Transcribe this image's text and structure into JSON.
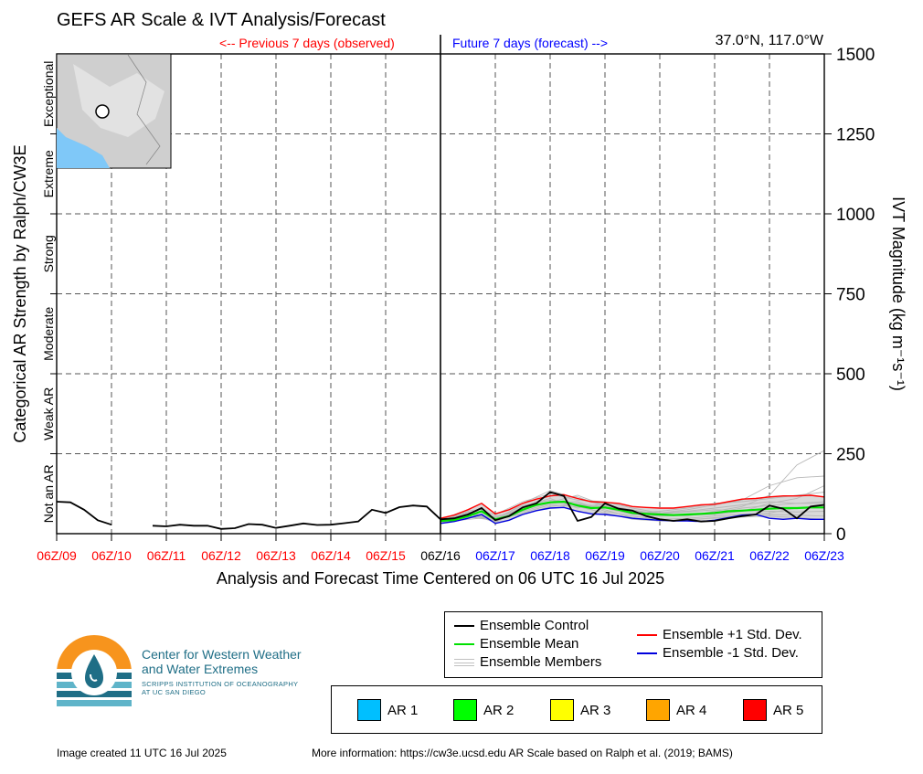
{
  "header": {
    "title": "GEFS AR Scale & IVT Analysis/Forecast",
    "location": "37.0°N, 117.0°W",
    "previous_label": "<-- Previous 7 days (observed)",
    "future_label": "Future 7 days (forecast) -->"
  },
  "colors": {
    "control": "#000000",
    "mean": "#00e000",
    "members": "#b8b8b8",
    "plus_std": "#ff0000",
    "minus_std": "#0000dd",
    "spread_fill": "#d0d0d0",
    "observed_tick": "#ff0000",
    "forecast_tick": "#0000ff",
    "ocean": "#7fc8f8",
    "grid": "#555555"
  },
  "chart_data": {
    "type": "line",
    "title": "GEFS AR Scale & IVT Analysis/Forecast",
    "xlabel": "Analysis and Forecast Time Centered on 06 UTC 16 Jul 2025",
    "ylabel_right": "IVT Magnitude (kg m⁻¹s⁻¹)",
    "ylabel_left": "Categorical AR Strength by Ralph/CW3E",
    "x_unit": "days from 06Z/09 Jul 2025",
    "xlim": [
      0,
      14
    ],
    "ylim": [
      0,
      1500
    ],
    "y_ticks": [
      0,
      250,
      500,
      750,
      1000,
      1250,
      1500
    ],
    "x_ticks": [
      "06Z/09",
      "06Z/10",
      "06Z/11",
      "06Z/12",
      "06Z/13",
      "06Z/14",
      "06Z/15",
      "06Z/16",
      "06Z/17",
      "06Z/18",
      "06Z/19",
      "06Z/20",
      "06Z/21",
      "06Z/22",
      "06Z/23"
    ],
    "analysis_index": 7,
    "categories": [
      "Not an AR",
      "Weak AR",
      "Moderate",
      "Strong",
      "Extreme",
      "Exceptional"
    ],
    "grid": true,
    "legend_placement": "below-right",
    "series": [
      {
        "name": "Ensemble Control",
        "x": [
          0,
          0.25,
          0.5,
          0.75,
          1.0,
          1.25,
          1.5,
          1.75,
          2.0,
          2.25,
          2.5,
          2.75,
          3.0,
          3.25,
          3.5,
          3.75,
          4.0,
          4.25,
          4.5,
          4.75,
          5.0,
          5.25,
          5.5,
          5.75,
          6.0,
          6.25,
          6.5,
          6.75,
          7.0,
          7.25,
          7.5,
          7.75,
          8.0,
          8.25,
          8.5,
          8.75,
          9.0,
          9.25,
          9.5,
          9.75,
          10.0,
          10.25,
          10.5,
          10.75,
          11.0,
          11.25,
          11.5,
          11.75,
          12.0,
          12.25,
          12.5,
          12.75,
          13.0,
          13.25,
          13.5,
          13.75,
          14.0
        ],
        "y": [
          100,
          98,
          75,
          42,
          28,
          null,
          null,
          25,
          23,
          28,
          25,
          25,
          15,
          17,
          30,
          28,
          18,
          25,
          32,
          27,
          28,
          33,
          38,
          75,
          65,
          83,
          88,
          85,
          45,
          48,
          60,
          80,
          42,
          55,
          82,
          95,
          130,
          118,
          40,
          52,
          95,
          78,
          72,
          55,
          45,
          40,
          45,
          38,
          40,
          48,
          55,
          60,
          88,
          78,
          48,
          85,
          90
        ]
      },
      {
        "name": "Ensemble Mean",
        "x": [
          7.0,
          7.25,
          7.5,
          7.75,
          8.0,
          8.25,
          8.5,
          8.75,
          9.0,
          9.25,
          9.5,
          9.75,
          10.0,
          10.25,
          10.5,
          10.75,
          11.0,
          11.25,
          11.5,
          11.75,
          12.0,
          12.25,
          12.5,
          12.75,
          13.0,
          13.25,
          13.5,
          13.75,
          14.0
        ],
        "y": [
          40,
          43,
          55,
          70,
          45,
          55,
          75,
          90,
          98,
          100,
          88,
          80,
          82,
          75,
          65,
          62,
          60,
          58,
          60,
          62,
          65,
          70,
          72,
          75,
          78,
          80,
          80,
          82,
          82
        ]
      },
      {
        "name": "Ensemble +1 Std. Dev.",
        "x": [
          7.0,
          7.25,
          7.5,
          7.75,
          8.0,
          8.25,
          8.5,
          8.75,
          9.0,
          9.25,
          9.5,
          9.75,
          10.0,
          10.25,
          10.5,
          10.75,
          11.0,
          11.25,
          11.5,
          11.75,
          12.0,
          12.25,
          12.5,
          12.75,
          13.0,
          13.25,
          13.5,
          13.75,
          14.0
        ],
        "y": [
          48,
          58,
          75,
          95,
          62,
          75,
          95,
          108,
          118,
          122,
          110,
          100,
          98,
          95,
          85,
          82,
          80,
          80,
          85,
          90,
          92,
          100,
          108,
          110,
          115,
          118,
          118,
          120,
          115
        ]
      },
      {
        "name": "Ensemble -1 Std. Dev.",
        "x": [
          7.0,
          7.25,
          7.5,
          7.75,
          8.0,
          8.25,
          8.5,
          8.75,
          9.0,
          9.25,
          9.5,
          9.75,
          10.0,
          10.25,
          10.5,
          10.75,
          11.0,
          11.25,
          11.5,
          11.75,
          12.0,
          12.25,
          12.5,
          12.75,
          13.0,
          13.25,
          13.5,
          13.75,
          14.0
        ],
        "y": [
          32,
          38,
          48,
          60,
          32,
          42,
          60,
          72,
          80,
          82,
          70,
          62,
          60,
          55,
          48,
          45,
          42,
          40,
          40,
          38,
          42,
          50,
          58,
          60,
          48,
          45,
          48,
          45,
          45
        ]
      },
      {
        "name": "Ensemble Members",
        "x": [
          7.0,
          7.5,
          8.0,
          8.5,
          9.0,
          9.5,
          10.0,
          10.5,
          11.0,
          11.5,
          12.0,
          12.5,
          13.0,
          13.5,
          14.0
        ],
        "members": [
          [
            40,
            62,
            50,
            80,
            120,
            115,
            85,
            70,
            65,
            75,
            90,
            105,
            150,
            175,
            180
          ],
          [
            42,
            55,
            45,
            75,
            100,
            90,
            80,
            60,
            55,
            58,
            60,
            70,
            95,
            110,
            150
          ],
          [
            38,
            70,
            40,
            95,
            135,
            110,
            90,
            75,
            60,
            55,
            70,
            85,
            120,
            215,
            260
          ],
          [
            45,
            50,
            55,
            70,
            95,
            100,
            70,
            55,
            45,
            48,
            55,
            60,
            65,
            80,
            90
          ],
          [
            40,
            68,
            38,
            85,
            110,
            80,
            95,
            65,
            70,
            80,
            95,
            100,
            110,
            120,
            130
          ],
          [
            35,
            45,
            52,
            60,
            85,
            95,
            75,
            50,
            40,
            42,
            50,
            55,
            60,
            58,
            55
          ],
          [
            44,
            75,
            60,
            100,
            125,
            105,
            100,
            80,
            65,
            70,
            80,
            90,
            100,
            95,
            100
          ],
          [
            36,
            52,
            42,
            65,
            90,
            85,
            65,
            45,
            40,
            45,
            48,
            52,
            55,
            50,
            45
          ],
          [
            42,
            60,
            48,
            88,
            105,
            92,
            85,
            68,
            55,
            60,
            65,
            80,
            88,
            95,
            95
          ],
          [
            39,
            65,
            35,
            78,
            98,
            120,
            88,
            72,
            62,
            68,
            75,
            72,
            70,
            68,
            70
          ]
        ]
      }
    ]
  },
  "legend": {
    "control": "Ensemble Control",
    "mean": "Ensemble Mean",
    "members": "Ensemble Members",
    "plus_std": "Ensemble +1 Std. Dev.",
    "minus_std": "Ensemble -1 Std. Dev."
  },
  "ar_scale": [
    {
      "label": "AR 1",
      "color": "#00bfff"
    },
    {
      "label": "AR 2",
      "color": "#00ff00"
    },
    {
      "label": "AR 3",
      "color": "#ffff00"
    },
    {
      "label": "AR 4",
      "color": "#ffa500"
    },
    {
      "label": "AR 5",
      "color": "#ff0000"
    }
  ],
  "logo": {
    "name_line1": "Center for Western Weather",
    "name_line2": "and Water Extremes",
    "sub_line1": "SCRIPPS INSTITUTION OF OCEANOGRAPHY",
    "sub_line2": "AT UC SAN DIEGO",
    "colors": {
      "sun": "#f7941d",
      "water": "#1f6e86",
      "light": "#5fb4c9"
    }
  },
  "footer": {
    "created": "Image created 11 UTC 16 Jul 2025",
    "info": "More information: https://cw3e.ucsd.edu AR Scale based on Ralph et al. (2019; BAMS)"
  }
}
